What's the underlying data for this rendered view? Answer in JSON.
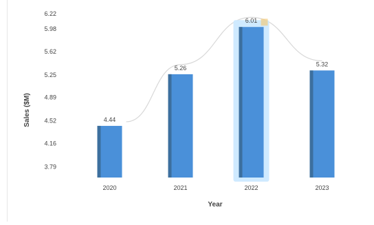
{
  "chart_data": {
    "type": "bar",
    "title": "",
    "xlabel": "Year",
    "ylabel": "Sales ($M)",
    "categories": [
      "2020",
      "2021",
      "2022",
      "2023"
    ],
    "series": [
      {
        "values": [
          4.44,
          5.26,
          6.01,
          5.32
        ]
      }
    ],
    "data_labels": [
      "4.44",
      "5.26",
      "6.01",
      "5.32"
    ],
    "highlight_index": 2,
    "trend_line": true,
    "ylim": [
      3.62,
      6.22
    ],
    "yticks": [
      3.79,
      4.16,
      4.52,
      4.89,
      5.25,
      5.62,
      5.98,
      6.22
    ],
    "ytick_labels": [
      "3.79",
      "4.16",
      "4.52",
      "4.89",
      "5.25",
      "5.62",
      "5.98",
      "6.22"
    ],
    "grid": false,
    "legend": "none",
    "colors": {
      "bar": "#4a90d9",
      "bar_dark": "#3c6f9e",
      "highlight_glow": "#cfeaff",
      "highlight_accent": "#f5c66a",
      "trend": "#d8d8d8",
      "text": "#444444"
    }
  }
}
